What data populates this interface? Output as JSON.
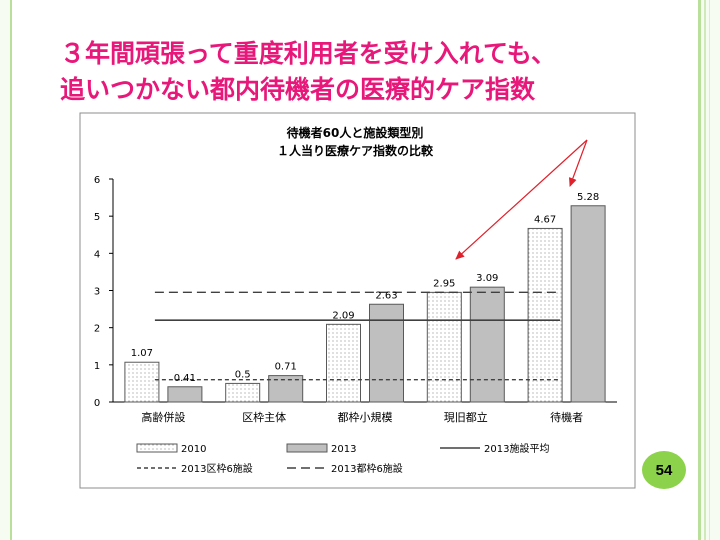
{
  "slide": {
    "title_line1": "３年間頑張って重度利用者を受け入れても、",
    "title_line2": "追いつかない都内待機者の医療的ケア指数",
    "page_number": "54",
    "title_color": "#e8177a",
    "arrow_color": "#e0202a",
    "badge_color": "#8cd24a"
  },
  "chart_data": {
    "type": "bar",
    "title": "待機者60人と施設類型別\n１人当り医療ケア指数の比較",
    "categories": [
      "高齢併設",
      "区枠主体",
      "都枠小規模",
      "現旧都立",
      "待機者"
    ],
    "series": [
      {
        "name": "2010",
        "values": [
          1.07,
          0.5,
          2.09,
          2.95,
          4.67
        ],
        "labels": [
          "1.07",
          "0.5",
          "2.09",
          "2.95",
          "4.67"
        ],
        "style": "dotted"
      },
      {
        "name": "2013",
        "values": [
          0.41,
          0.71,
          2.63,
          3.09,
          5.28
        ],
        "labels": [
          "0.41",
          "0.71",
          "2.63",
          "3.09",
          "5.28"
        ],
        "style": "gray",
        "color": "#bfbfbf"
      }
    ],
    "reference_lines": [
      {
        "name": "2013施設平均",
        "style": "solid",
        "value": 2.2
      },
      {
        "name": "2013区枠6施設",
        "style": "dashed-short",
        "value": 0.6
      },
      {
        "name": "2013都枠6施設",
        "style": "dashed-long",
        "value": 2.95
      }
    ],
    "ylim": [
      0,
      6
    ],
    "yticks": [
      "0",
      "1",
      "2",
      "3",
      "4",
      "5",
      "6"
    ],
    "grid": false,
    "legend_position": "bottom"
  }
}
